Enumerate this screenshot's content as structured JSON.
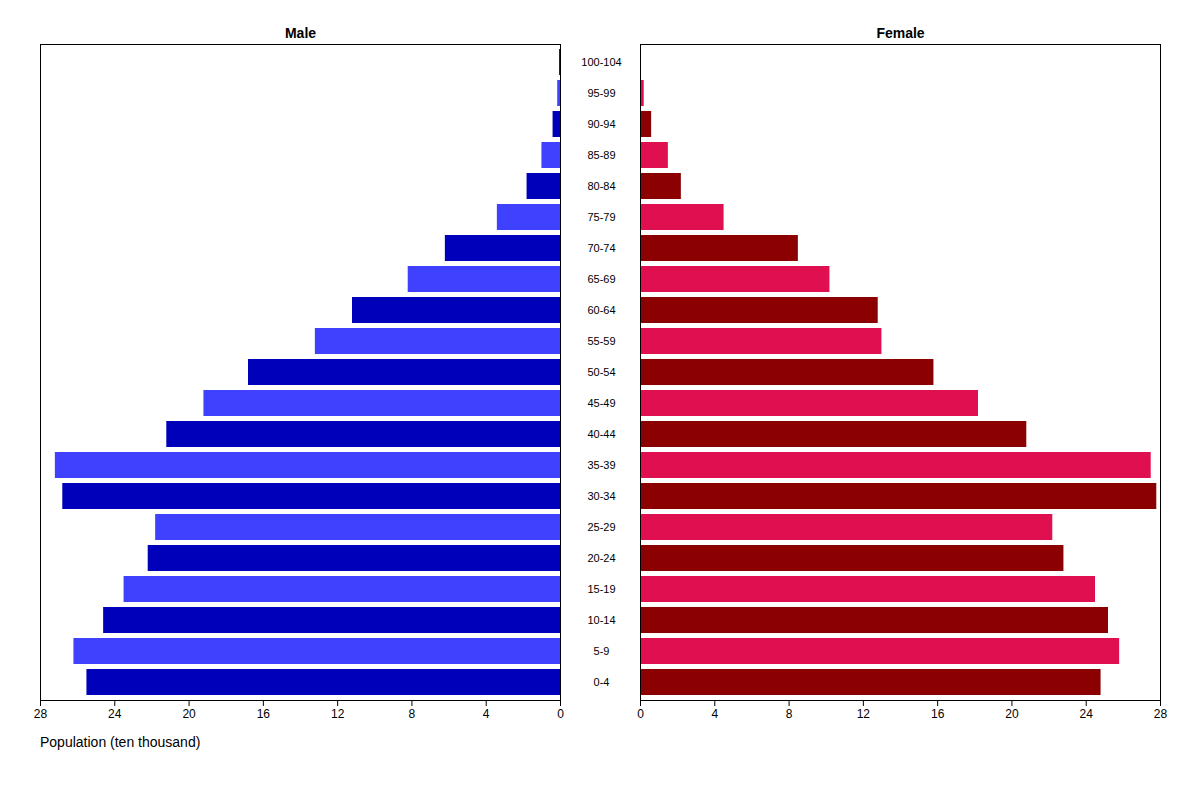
{
  "chart_data": {
    "type": "bar",
    "orientation": "horizontal",
    "categories": [
      "0-4",
      "5-9",
      "10-14",
      "15-19",
      "20-24",
      "25-29",
      "30-34",
      "35-39",
      "40-44",
      "45-49",
      "50-54",
      "55-59",
      "60-64",
      "65-69",
      "70-74",
      "75-79",
      "80-84",
      "85-89",
      "90-94",
      "95-99",
      "100-104"
    ],
    "series": [
      {
        "name": "Male",
        "colors": [
          "#0000BB",
          "#4040FF",
          "#0000BB",
          "#4040FF",
          "#0000BB",
          "#4040FF",
          "#0000BB",
          "#4040FF",
          "#0000BB",
          "#4040FF",
          "#0000BB",
          "#4040FF",
          "#0000BB",
          "#4040FF",
          "#0000BB",
          "#4040FF",
          "#0000BB",
          "#4040FF",
          "#0000BB",
          "#4040FF",
          "#0000BB"
        ],
        "values": [
          25.5,
          26.2,
          24.6,
          23.5,
          22.2,
          21.8,
          26.8,
          27.2,
          21.2,
          19.2,
          16.8,
          13.2,
          11.2,
          8.2,
          6.2,
          3.4,
          1.8,
          1.0,
          0.4,
          0.15,
          0.05
        ]
      },
      {
        "name": "Female",
        "colors": [
          "#8B0000",
          "#E01050",
          "#8B0000",
          "#E01050",
          "#8B0000",
          "#E01050",
          "#8B0000",
          "#E01050",
          "#8B0000",
          "#E01050",
          "#8B0000",
          "#E01050",
          "#8B0000",
          "#E01050",
          "#8B0000",
          "#E01050",
          "#8B0000",
          "#E01050",
          "#8B0000",
          "#E01050",
          "#8B0000"
        ],
        "values": [
          24.8,
          25.8,
          25.2,
          24.5,
          22.8,
          22.2,
          27.8,
          27.5,
          20.8,
          18.2,
          15.8,
          13.0,
          12.8,
          10.2,
          8.5,
          4.5,
          2.2,
          1.5,
          0.6,
          0.2,
          0.05
        ]
      }
    ],
    "xlabel": "Population (ten thousand)",
    "xlim": [
      0,
      28
    ],
    "xticks": [
      0,
      4,
      8,
      12,
      16,
      20,
      24,
      28
    ],
    "grid": false
  }
}
